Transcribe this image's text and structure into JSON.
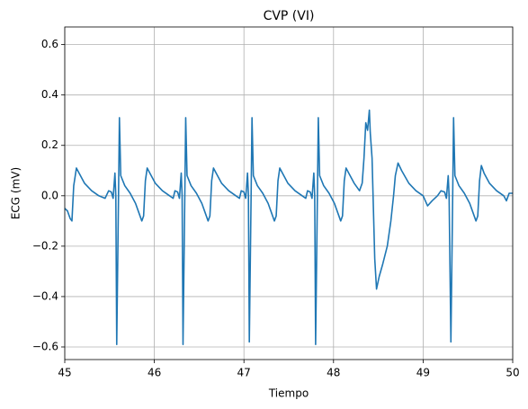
{
  "chart_data": {
    "type": "line",
    "title": "CVP (VI)",
    "x_label": "Tiempo",
    "y_label": "ECG (mV)",
    "color": "#1f77b4",
    "grid": true,
    "xlim": [
      45,
      50
    ],
    "ylim": [
      -0.65,
      0.67
    ],
    "xticks": [
      45,
      46,
      47,
      48,
      49,
      50
    ],
    "yticks": [
      {
        "value": -0.6,
        "label": "−0.6"
      },
      {
        "value": -0.4,
        "label": "−0.4"
      },
      {
        "value": -0.2,
        "label": "−0.2"
      },
      {
        "value": 0,
        "label": "0.0"
      },
      0.2,
      0.4,
      0.6
    ],
    "x": [
      45.0,
      45.03,
      45.06,
      45.08,
      45.1,
      45.13,
      45.16,
      45.22,
      45.3,
      45.38,
      45.45,
      45.49,
      45.52,
      45.54,
      45.56,
      45.57,
      45.58,
      45.6,
      45.61,
      45.625,
      45.67,
      45.73,
      45.79,
      45.83,
      45.86,
      45.88,
      45.9,
      45.92,
      45.95,
      46.01,
      46.09,
      46.17,
      46.21,
      46.23,
      46.26,
      46.28,
      46.3,
      46.31,
      46.32,
      46.34,
      46.35,
      46.365,
      46.41,
      46.47,
      46.53,
      46.57,
      46.6,
      46.62,
      46.64,
      46.66,
      46.69,
      46.75,
      46.83,
      46.91,
      46.95,
      46.97,
      47.0,
      47.02,
      47.04,
      47.05,
      47.06,
      47.08,
      47.09,
      47.105,
      47.15,
      47.21,
      47.27,
      47.31,
      47.34,
      47.36,
      47.38,
      47.4,
      47.43,
      47.49,
      47.57,
      47.65,
      47.69,
      47.71,
      47.74,
      47.76,
      47.78,
      47.79,
      47.8,
      47.82,
      47.83,
      47.845,
      47.89,
      47.95,
      48.01,
      48.05,
      48.08,
      48.1,
      48.12,
      48.14,
      48.17,
      48.23,
      48.29,
      48.32,
      48.34,
      48.36,
      48.38,
      48.4,
      48.41,
      48.43,
      48.46,
      48.48,
      48.51,
      48.55,
      48.6,
      48.64,
      48.67,
      48.69,
      48.72,
      48.76,
      48.84,
      48.92,
      49.0,
      49.05,
      49.1,
      49.16,
      49.2,
      49.24,
      49.26,
      49.28,
      49.29,
      49.31,
      49.33,
      49.34,
      49.355,
      49.4,
      49.46,
      49.52,
      49.56,
      49.59,
      49.61,
      49.63,
      49.65,
      49.68,
      49.74,
      49.82,
      49.9,
      49.93,
      49.96,
      50.0
    ],
    "values": [
      -0.05,
      -0.06,
      -0.09,
      -0.1,
      0.04,
      0.11,
      0.09,
      0.05,
      0.02,
      0.0,
      -0.01,
      0.02,
      0.015,
      -0.01,
      0.09,
      0.0,
      -0.59,
      0.0,
      0.31,
      0.08,
      0.04,
      0.01,
      -0.03,
      -0.07,
      -0.1,
      -0.08,
      0.06,
      0.11,
      0.09,
      0.05,
      0.02,
      0.0,
      -0.01,
      0.02,
      0.015,
      -0.01,
      0.09,
      0.0,
      -0.59,
      0.0,
      0.31,
      0.08,
      0.04,
      0.01,
      -0.03,
      -0.07,
      -0.1,
      -0.08,
      0.06,
      0.11,
      0.09,
      0.05,
      0.02,
      0.0,
      -0.01,
      0.02,
      0.015,
      -0.01,
      0.09,
      0.0,
      -0.58,
      0.0,
      0.31,
      0.08,
      0.04,
      0.01,
      -0.03,
      -0.07,
      -0.1,
      -0.08,
      0.06,
      0.11,
      0.09,
      0.05,
      0.02,
      0.0,
      -0.01,
      0.02,
      0.015,
      -0.01,
      0.09,
      0.0,
      -0.59,
      0.0,
      0.31,
      0.08,
      0.04,
      0.01,
      -0.03,
      -0.07,
      -0.1,
      -0.08,
      0.06,
      0.11,
      0.09,
      0.05,
      0.02,
      0.05,
      0.15,
      0.29,
      0.26,
      0.34,
      0.25,
      0.15,
      -0.25,
      -0.37,
      -0.32,
      -0.27,
      -0.2,
      -0.1,
      0.0,
      0.08,
      0.13,
      0.1,
      0.05,
      0.02,
      0.0,
      -0.04,
      -0.02,
      0.0,
      0.02,
      0.015,
      -0.01,
      0.08,
      0.0,
      -0.58,
      0.0,
      0.31,
      0.08,
      0.04,
      0.01,
      -0.03,
      -0.07,
      -0.1,
      -0.08,
      0.06,
      0.12,
      0.09,
      0.05,
      0.02,
      0.0,
      -0.02,
      0.01,
      0.01
    ]
  }
}
